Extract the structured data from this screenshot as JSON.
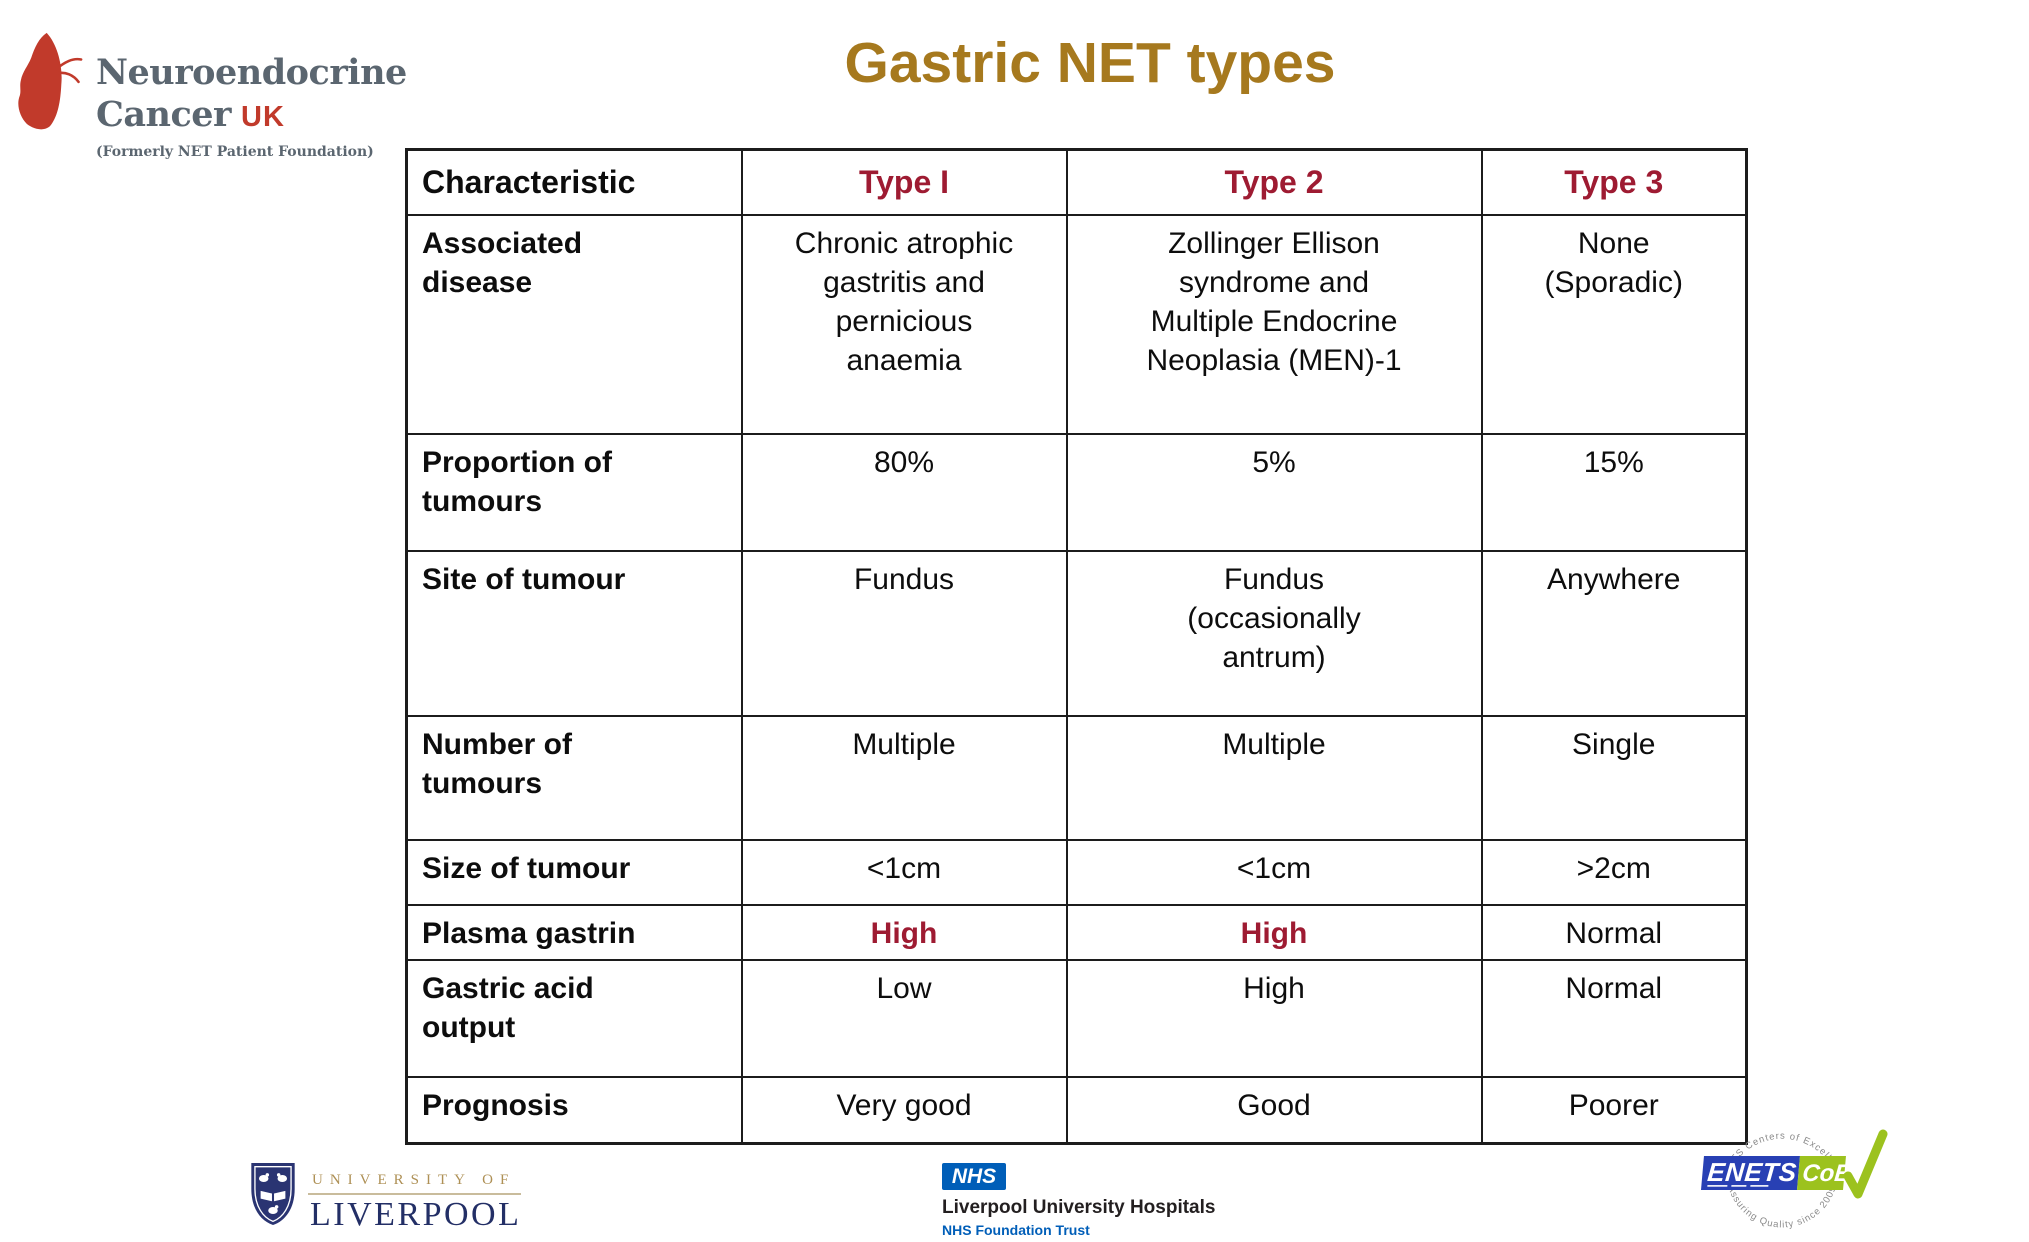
{
  "slide": {
    "background": "#ffffff"
  },
  "header": {
    "title": "Gastric NET types",
    "title_color": "#A6791E"
  },
  "branding": {
    "ncuk": {
      "line1": "Neuroendocrine",
      "line2": "Cancer",
      "uk": "UK",
      "tagline": "(Formerly NET Patient Foundation)",
      "butterfly_color": "#C13A2B",
      "text_color": "#5B6670"
    }
  },
  "table": {
    "border_color": "#1c1c1c",
    "type_header_color": "#9E1B32",
    "highlight_color": "#9E1B32",
    "columns": [
      "Characteristic",
      "Type I",
      "Type 2",
      "Type 3"
    ],
    "rows": [
      {
        "label": "Associated\ndisease",
        "cells": [
          "Chronic atrophic\ngastritis and\npernicious\nanaemia",
          "Zollinger Ellison\nsyndrome and\nMultiple Endocrine\nNeoplasia (MEN)-1",
          "None\n(Sporadic)"
        ]
      },
      {
        "label": "Proportion of\ntumours",
        "cells": [
          "80%",
          "5%",
          "15%"
        ]
      },
      {
        "label": "Site of tumour",
        "cells": [
          "Fundus",
          "Fundus\n(occasionally\nantrum)",
          "Anywhere"
        ]
      },
      {
        "label": "Number of\ntumours",
        "cells": [
          "Multiple",
          "Multiple",
          "Single"
        ]
      },
      {
        "label": "Size of tumour",
        "cells": [
          "<1cm",
          "<1cm",
          ">2cm"
        ]
      },
      {
        "label": "Plasma gastrin",
        "cells": [
          "High",
          "High",
          "Normal"
        ],
        "highlight": [
          0,
          1
        ]
      },
      {
        "label": "Gastric acid\noutput",
        "cells": [
          "Low",
          "High",
          "Normal"
        ]
      },
      {
        "label": "Prognosis",
        "cells": [
          "Very good",
          "Good",
          "Poorer"
        ]
      }
    ]
  },
  "footer": {
    "liverpool": {
      "line1": "UNIVERSITY OF",
      "line2": "LIVERPOOL",
      "gold": "#AE9055",
      "navy": "#232F66"
    },
    "nhs": {
      "logo_text": "NHS",
      "line1": "Liverpool University Hospitals",
      "line2": "NHS Foundation Trust",
      "blue": "#005EB8"
    },
    "enets": {
      "arc_top": "ENETS Centers of Excellence",
      "arc_bottom": "Assuring Quality since 2009",
      "badge_left": "ENETS",
      "badge_right": "CoE",
      "blue": "#2840B4",
      "green": "#9CC21E"
    }
  }
}
